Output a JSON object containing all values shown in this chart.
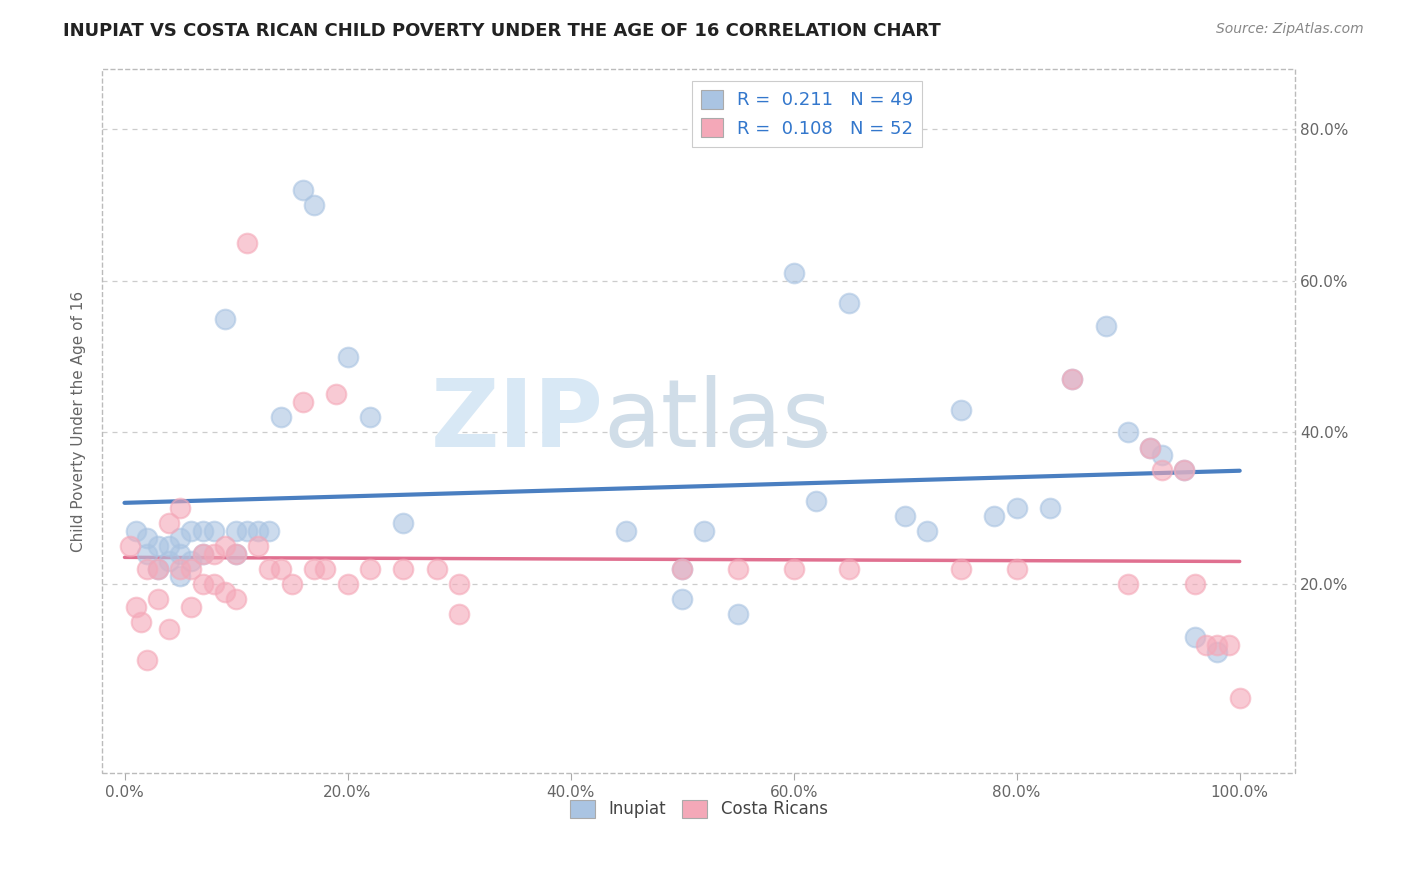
{
  "title": "INUPIAT VS COSTA RICAN CHILD POVERTY UNDER THE AGE OF 16 CORRELATION CHART",
  "source": "Source: ZipAtlas.com",
  "ylabel": "Child Poverty Under the Age of 16",
  "xticks": [
    0.0,
    0.2,
    0.4,
    0.6,
    0.8,
    1.0
  ],
  "xtick_labels": [
    "0.0%",
    "20.0%",
    "40.0%",
    "60.0%",
    "80.0%",
    "100.0%"
  ],
  "ytick_labels": [
    "20.0%",
    "40.0%",
    "60.0%",
    "80.0%"
  ],
  "ytick_vals": [
    0.2,
    0.4,
    0.6,
    0.8
  ],
  "inupiat_color": "#aac4e2",
  "costa_rican_color": "#f4a8b8",
  "inupiat_line_color": "#4a7fc1",
  "costa_rican_line_color": "#e07090",
  "legend_R1": "0.211",
  "legend_N1": "49",
  "legend_R2": "0.108",
  "legend_N2": "52",
  "watermark_zip": "ZIP",
  "watermark_atlas": "atlas",
  "inupiat_x": [
    0.01,
    0.02,
    0.02,
    0.03,
    0.03,
    0.04,
    0.04,
    0.05,
    0.05,
    0.05,
    0.06,
    0.06,
    0.07,
    0.07,
    0.08,
    0.09,
    0.1,
    0.1,
    0.11,
    0.12,
    0.13,
    0.14,
    0.16,
    0.17,
    0.2,
    0.22,
    0.25,
    0.5,
    0.52,
    0.6,
    0.65,
    0.75,
    0.78,
    0.8,
    0.83,
    0.85,
    0.88,
    0.9,
    0.92,
    0.93,
    0.95,
    0.96,
    0.98,
    0.5,
    0.55,
    0.7,
    0.72,
    0.62,
    0.45
  ],
  "inupiat_y": [
    0.27,
    0.26,
    0.24,
    0.25,
    0.22,
    0.25,
    0.23,
    0.26,
    0.24,
    0.21,
    0.27,
    0.23,
    0.27,
    0.24,
    0.27,
    0.55,
    0.27,
    0.24,
    0.27,
    0.27,
    0.27,
    0.42,
    0.72,
    0.7,
    0.5,
    0.42,
    0.28,
    0.22,
    0.27,
    0.61,
    0.57,
    0.43,
    0.29,
    0.3,
    0.3,
    0.47,
    0.54,
    0.4,
    0.38,
    0.37,
    0.35,
    0.13,
    0.11,
    0.18,
    0.16,
    0.29,
    0.27,
    0.31,
    0.27
  ],
  "costa_rican_x": [
    0.005,
    0.01,
    0.015,
    0.02,
    0.02,
    0.03,
    0.03,
    0.04,
    0.04,
    0.05,
    0.05,
    0.06,
    0.06,
    0.07,
    0.07,
    0.08,
    0.08,
    0.09,
    0.09,
    0.1,
    0.1,
    0.11,
    0.12,
    0.13,
    0.14,
    0.15,
    0.16,
    0.17,
    0.18,
    0.19,
    0.2,
    0.22,
    0.25,
    0.28,
    0.3,
    0.3,
    0.5,
    0.55,
    0.6,
    0.65,
    0.75,
    0.8,
    0.85,
    0.9,
    0.92,
    0.93,
    0.95,
    0.96,
    0.97,
    0.98,
    0.99,
    1.0
  ],
  "costa_rican_y": [
    0.25,
    0.17,
    0.15,
    0.1,
    0.22,
    0.22,
    0.18,
    0.28,
    0.14,
    0.3,
    0.22,
    0.22,
    0.17,
    0.24,
    0.2,
    0.24,
    0.2,
    0.25,
    0.19,
    0.24,
    0.18,
    0.65,
    0.25,
    0.22,
    0.22,
    0.2,
    0.44,
    0.22,
    0.22,
    0.45,
    0.2,
    0.22,
    0.22,
    0.22,
    0.2,
    0.16,
    0.22,
    0.22,
    0.22,
    0.22,
    0.22,
    0.22,
    0.47,
    0.2,
    0.38,
    0.35,
    0.35,
    0.2,
    0.12,
    0.12,
    0.12,
    0.05
  ]
}
